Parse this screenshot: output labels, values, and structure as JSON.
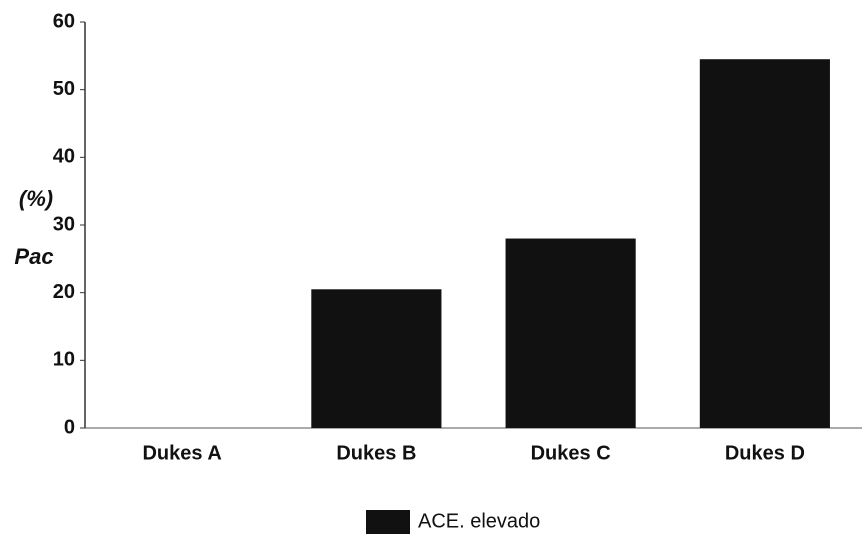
{
  "chart_data": {
    "type": "bar",
    "ylabel": [
      "(%)",
      "Pac"
    ],
    "categories": [
      "Dukes A",
      "Dukes B",
      "Dukes C",
      "Dukes D"
    ],
    "series": [
      {
        "name": "ACE. elevado",
        "color": "#111111",
        "values": [
          0,
          20.5,
          28,
          54.5
        ]
      }
    ],
    "ylim": [
      0,
      60
    ],
    "yticks": [
      0,
      10,
      20,
      30,
      40,
      50,
      60
    ],
    "grid": false,
    "legend": "bottom"
  }
}
